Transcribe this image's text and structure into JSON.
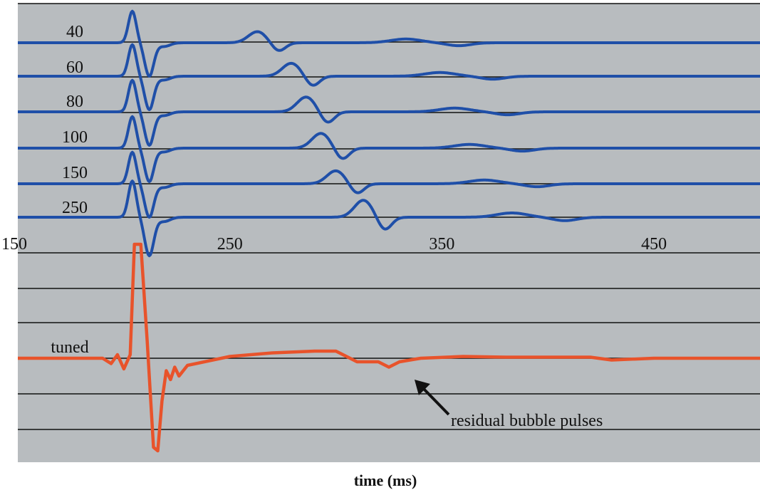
{
  "chart_data": {
    "type": "line",
    "title": "",
    "xlabel": "time (ms)",
    "ylabel": "",
    "xlim": [
      150,
      500
    ],
    "xticks": [
      150,
      250,
      350,
      450
    ],
    "grid": true,
    "colors": {
      "plot_bg": "#b8bcbf",
      "grid": "#111111",
      "traces": "#1f4fa8",
      "tuned": "#e8532b",
      "arrow": "#111111"
    },
    "traces": [
      {
        "label": "40",
        "primary_time": 208,
        "bubble_time": 263,
        "bubble_amp": 0.3
      },
      {
        "label": "60",
        "primary_time": 208,
        "bubble_time": 279,
        "bubble_amp": 0.35
      },
      {
        "label": "80",
        "primary_time": 208,
        "bubble_time": 286,
        "bubble_amp": 0.4
      },
      {
        "label": "100",
        "primary_time": 208,
        "bubble_time": 293,
        "bubble_amp": 0.4
      },
      {
        "label": "150",
        "primary_time": 208,
        "bubble_time": 300,
        "bubble_amp": 0.35
      },
      {
        "label": "250",
        "primary_time": 208,
        "bubble_time": 313,
        "bubble_amp": 0.4
      }
    ],
    "tuned": {
      "label": "tuned",
      "points": [
        [
          150,
          0
        ],
        [
          190,
          0
        ],
        [
          194,
          -0.15
        ],
        [
          197,
          0.1
        ],
        [
          200,
          -0.3
        ],
        [
          203,
          0.1
        ],
        [
          205,
          3.2
        ],
        [
          208,
          3.2
        ],
        [
          211,
          0.5
        ],
        [
          214,
          -2.5
        ],
        [
          216,
          -2.6
        ],
        [
          218,
          -1.2
        ],
        [
          220,
          -0.35
        ],
        [
          222,
          -0.6
        ],
        [
          224,
          -0.25
        ],
        [
          226,
          -0.5
        ],
        [
          230,
          -0.2
        ],
        [
          250,
          0.05
        ],
        [
          270,
          0.15
        ],
        [
          290,
          0.2
        ],
        [
          300,
          0.2
        ],
        [
          305,
          0.05
        ],
        [
          310,
          -0.1
        ],
        [
          315,
          -0.1
        ],
        [
          320,
          -0.1
        ],
        [
          325,
          -0.25
        ],
        [
          330,
          -0.1
        ],
        [
          340,
          0.0
        ],
        [
          360,
          0.05
        ],
        [
          380,
          0.03
        ],
        [
          420,
          0.03
        ],
        [
          430,
          -0.05
        ],
        [
          450,
          0.0
        ],
        [
          500,
          0.0
        ]
      ]
    },
    "annotations": [
      {
        "text": "residual bubble pulses",
        "points_to_time": 327
      }
    ]
  }
}
